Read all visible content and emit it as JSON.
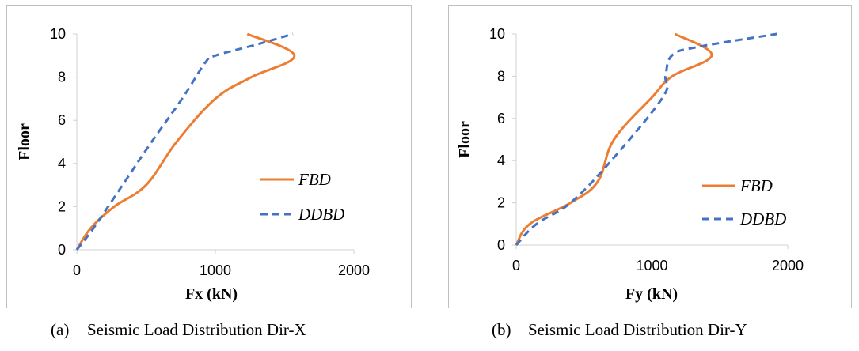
{
  "colors": {
    "fbd": "#ED7D31",
    "ddbd": "#4472C4"
  },
  "chart_data": [
    {
      "type": "line",
      "xlabel": "Fx (kN)",
      "ylabel": "Floor",
      "xlim": [
        0,
        2000
      ],
      "ylim": [
        0,
        10
      ],
      "xticks": [
        "0",
        "1000",
        "2000"
      ],
      "yticks": [
        "0",
        "2",
        "4",
        "6",
        "8",
        "10"
      ],
      "legend_position": "right",
      "series": [
        {
          "name": "FBD",
          "style": "solid",
          "color": "#ED7D31",
          "x": [
            0,
            100,
            270,
            500,
            720,
            1000,
            1260,
            1570,
            1230
          ],
          "y": [
            0,
            1,
            2,
            3,
            5,
            7,
            8,
            9,
            10
          ]
        },
        {
          "name": "DDBD",
          "style": "dashed",
          "color": "#4472C4",
          "x": [
            0,
            120,
            330,
            540,
            760,
            930,
            1000,
            1290,
            1560
          ],
          "y": [
            0,
            1,
            3,
            5,
            7,
            8.7,
            9,
            9.5,
            10
          ]
        }
      ]
    },
    {
      "type": "line",
      "xlabel": "Fy (kN)",
      "ylabel": "Floor",
      "xlim": [
        0,
        2000
      ],
      "ylim": [
        0,
        10
      ],
      "xticks": [
        "0",
        "1000",
        "2000"
      ],
      "yticks": [
        "0",
        "2",
        "4",
        "6",
        "8",
        "10"
      ],
      "legend_position": "right",
      "series": [
        {
          "name": "FBD",
          "style": "solid",
          "color": "#ED7D31",
          "x": [
            0,
            100,
            400,
            600,
            720,
            1000,
            1150,
            1440,
            1170
          ],
          "y": [
            0,
            1,
            2,
            3,
            5,
            7,
            8,
            9,
            10
          ]
        },
        {
          "name": "DDBD",
          "style": "dashed",
          "color": "#4472C4",
          "x": [
            0,
            150,
            400,
            700,
            1080,
            1100,
            1150,
            1350,
            1920
          ],
          "y": [
            0,
            1,
            2,
            4,
            7,
            8,
            9,
            9.4,
            10
          ]
        }
      ]
    }
  ],
  "captions": [
    {
      "tag": "(a)",
      "text": "Seismic Load Distribution Dir-X"
    },
    {
      "tag": "(b)",
      "text": "Seismic Load Distribution Dir-Y"
    }
  ]
}
